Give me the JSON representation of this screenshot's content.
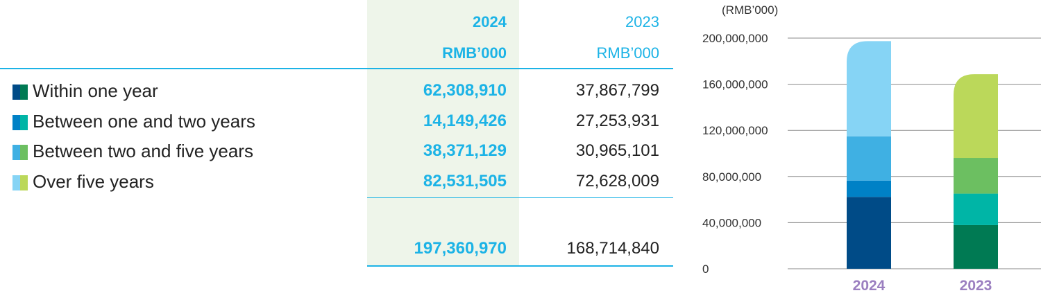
{
  "table": {
    "col_2024": {
      "year": "2024",
      "unit": "RMB’000"
    },
    "col_2023": {
      "year": "2023",
      "unit": "RMB’000"
    },
    "rows": [
      {
        "label": "Within one year",
        "v2024": "62,308,910",
        "v2023": "37,867,799",
        "color_2024": "#004b87",
        "color_2023": "#007a53"
      },
      {
        "label": "Between one and two years",
        "v2024": "14,149,426",
        "v2023": "27,253,931",
        "color_2024": "#0081c6",
        "color_2023": "#00b5a6"
      },
      {
        "label": "Between two and five years",
        "v2024": "38,371,129",
        "v2023": "30,965,101",
        "color_2024": "#3fb0e3",
        "color_2023": "#6cbf61"
      },
      {
        "label": "Over five years",
        "v2024": "82,531,505",
        "v2023": "72,628,009",
        "color_2024": "#86d4f5",
        "color_2023": "#bbd85a"
      }
    ],
    "total": {
      "v2024": "197,360,970",
      "v2023": "168,714,840"
    }
  },
  "chart_data": {
    "type": "bar",
    "stacked": true,
    "unit_label": "(RMB’000)",
    "categories": [
      "2024",
      "2023"
    ],
    "yticks": [
      "0",
      "40,000,000",
      "80,000,000",
      "120,000,000",
      "160,000,000",
      "200,000,000"
    ],
    "ylim": [
      0,
      200000000
    ],
    "grid": true,
    "stacks": [
      {
        "category": "2024",
        "values": [
          62308910,
          14149426,
          38371129,
          82531505
        ],
        "colors": [
          "#004b87",
          "#0081c6",
          "#3fb0e3",
          "#86d4f5"
        ]
      },
      {
        "category": "2023",
        "values": [
          37867799,
          27253931,
          30965101,
          72628009
        ],
        "colors": [
          "#007a53",
          "#00b5a6",
          "#6cbf61",
          "#bbd85a"
        ]
      }
    ],
    "category_label_color": "#9b7fc0",
    "grid_color": "#8a8a8a"
  }
}
